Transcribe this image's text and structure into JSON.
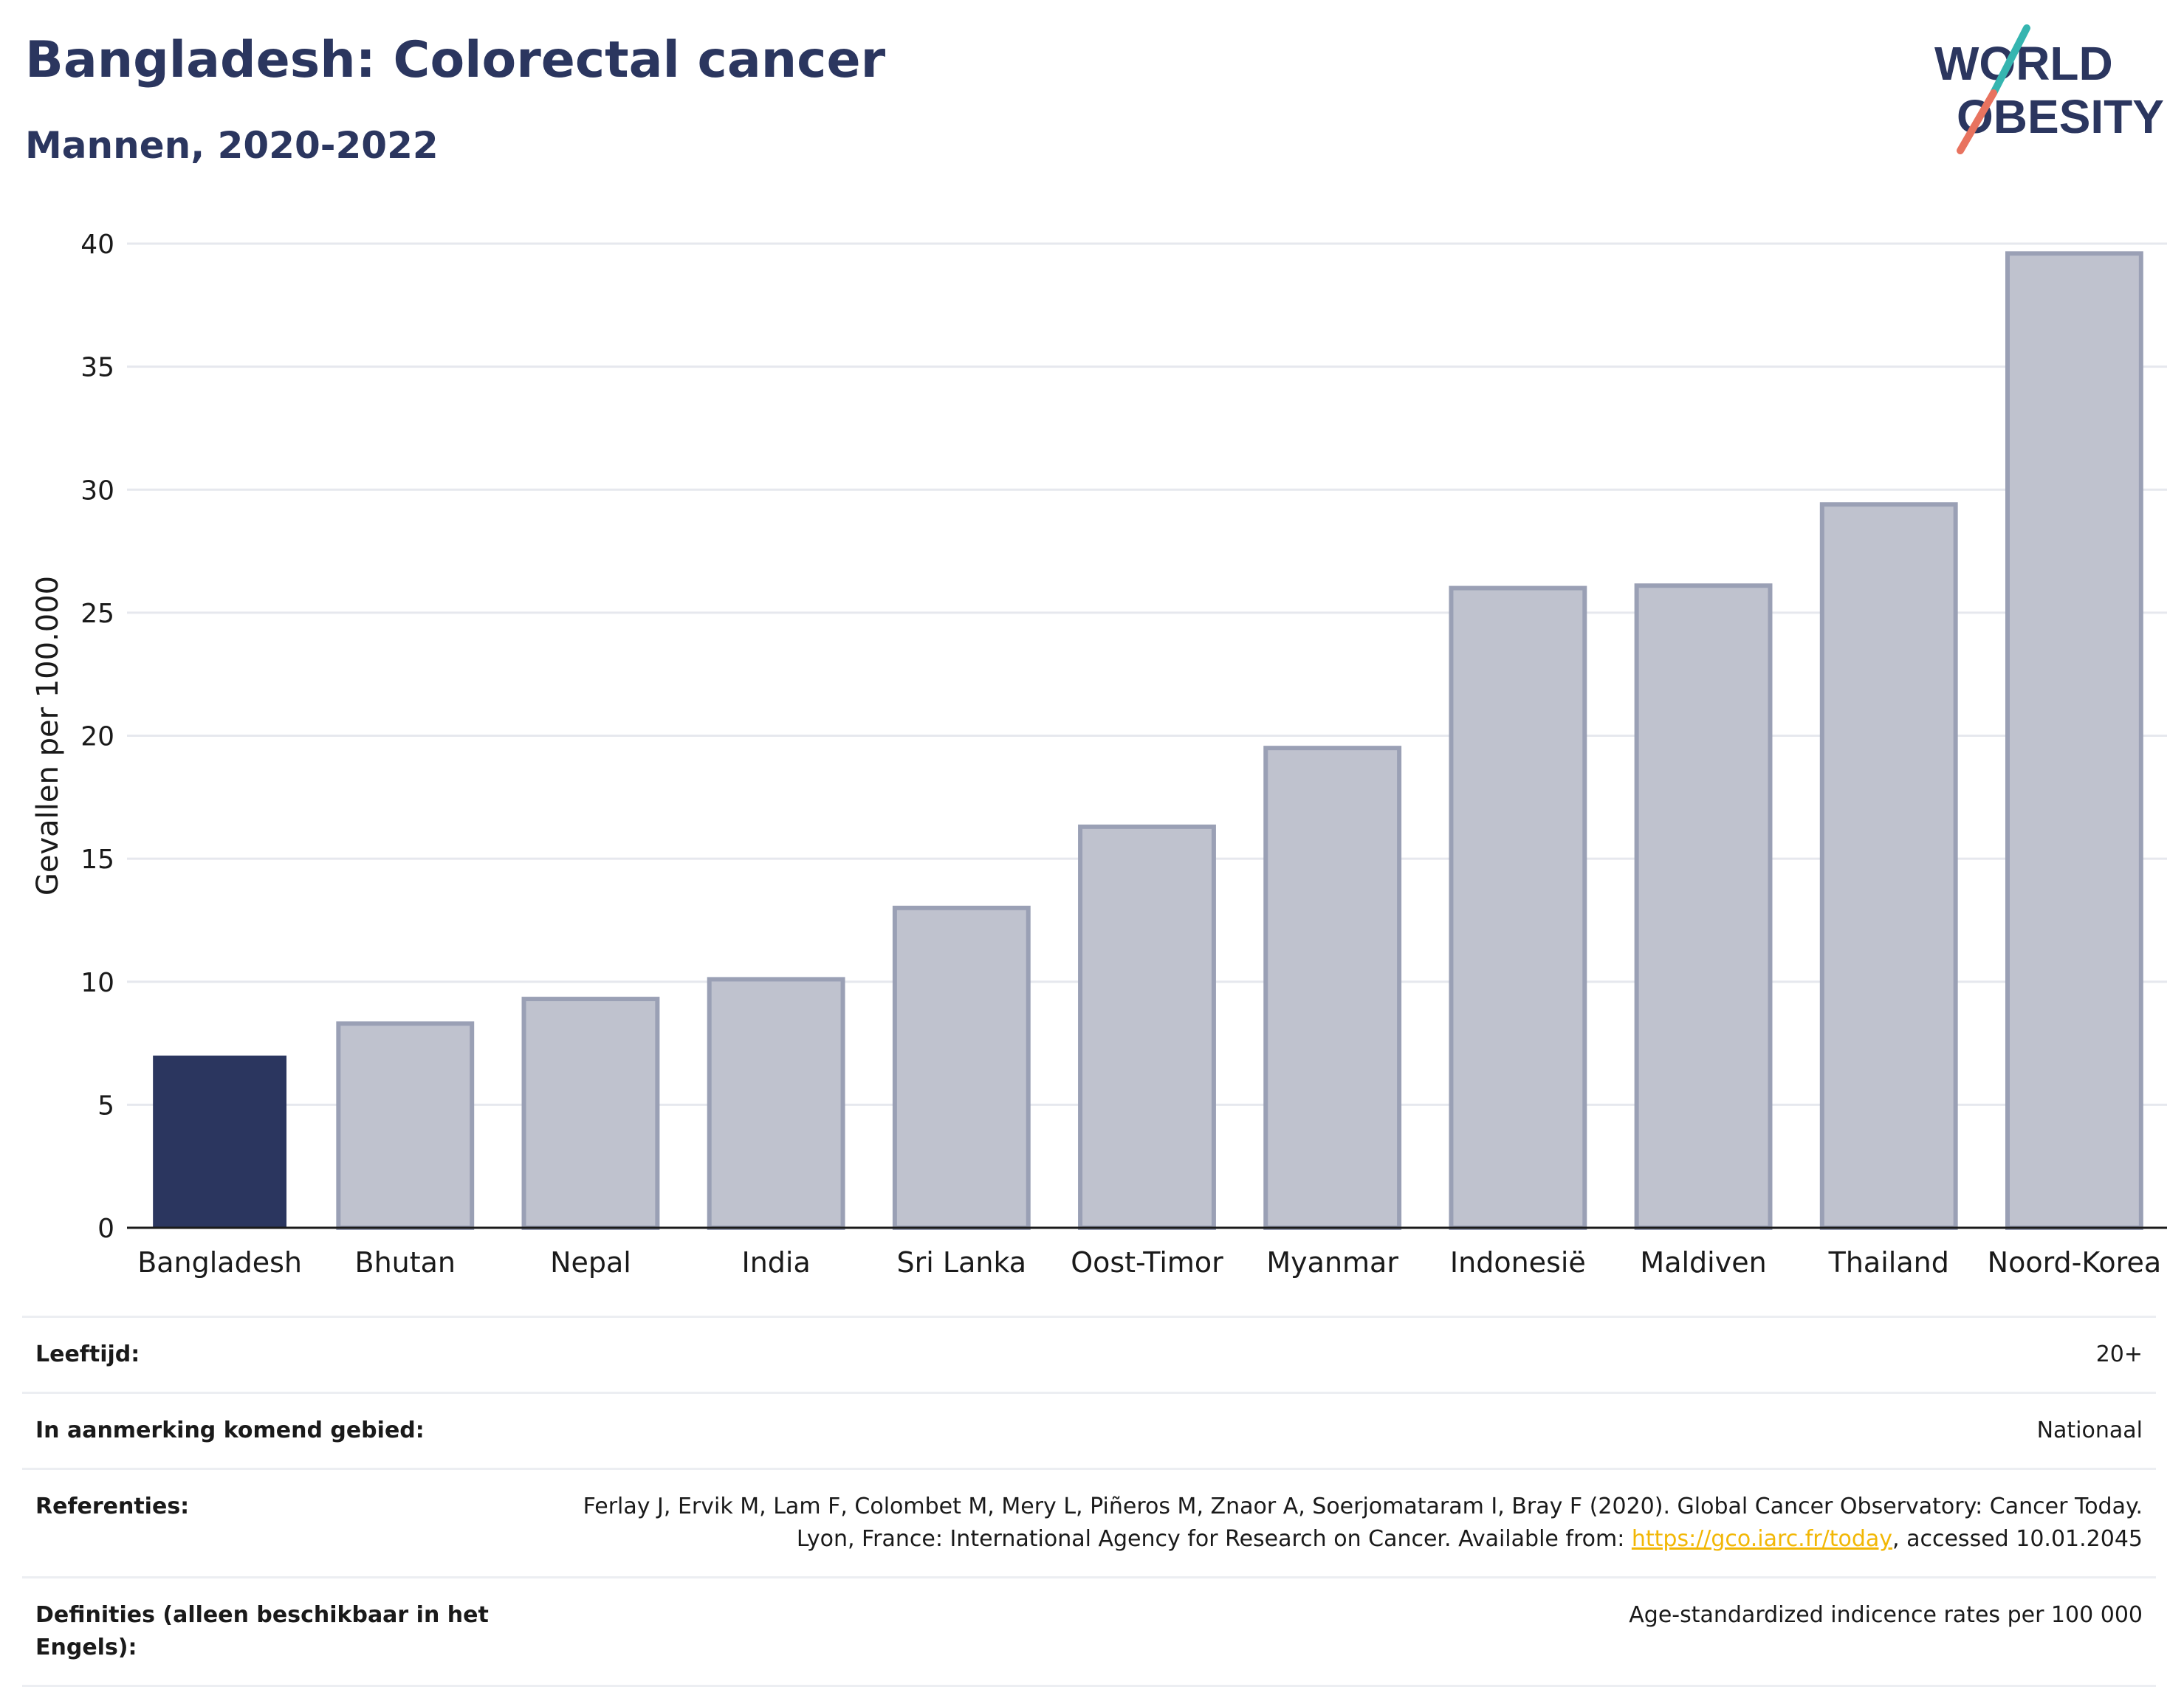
{
  "header": {
    "title": "Bangladesh: Colorectal cancer",
    "subtitle": "Mannen, 2020-2022"
  },
  "logo": {
    "line1": "WORLD",
    "line2": "OBESITY",
    "colors": {
      "navy": "#2b365f",
      "teal": "#35b5b0",
      "coral": "#e8735f"
    }
  },
  "chart_data": {
    "type": "bar",
    "categories": [
      "Bangladesh",
      "Bhutan",
      "Nepal",
      "India",
      "Sri Lanka",
      "Oost-Timor",
      "Myanmar",
      "Indonesië",
      "Maldiven",
      "Thailand",
      "Noord-Korea"
    ],
    "values": [
      7.0,
      8.3,
      9.3,
      10.1,
      13.0,
      16.3,
      19.5,
      26.0,
      26.1,
      29.4,
      39.6
    ],
    "highlight": "Bangladesh",
    "ylabel": "Gevallen per 100.000",
    "ylim": [
      0,
      40
    ],
    "yticks": [
      0,
      5,
      10,
      15,
      20,
      25,
      30,
      35,
      40
    ],
    "grid": true,
    "colors": {
      "highlight": "#2b365f",
      "default_fill": "#bfc2ce",
      "default_stroke": "#9aa0b5"
    }
  },
  "meta": [
    {
      "label": "Leeftijd:",
      "value": "20+"
    },
    {
      "label": "In aanmerking komend gebied:",
      "value": "Nationaal"
    },
    {
      "label": "Referenties:",
      "value_pre": "Ferlay J, Ervik M, Lam F, Colombet M, Mery L, Piñeros M, Znaor A, Soerjomataram I, Bray F (2020). Global Cancer Observatory: Cancer Today. Lyon, France: International Agency for Research on Cancer. Available from: ",
      "link": "https://gco.iarc.fr/today",
      "value_post": ", accessed 10.01.2045"
    },
    {
      "label": "Definities (alleen beschikbaar in het Engels):",
      "value": "Age-standardized indicence rates per 100 000"
    }
  ]
}
